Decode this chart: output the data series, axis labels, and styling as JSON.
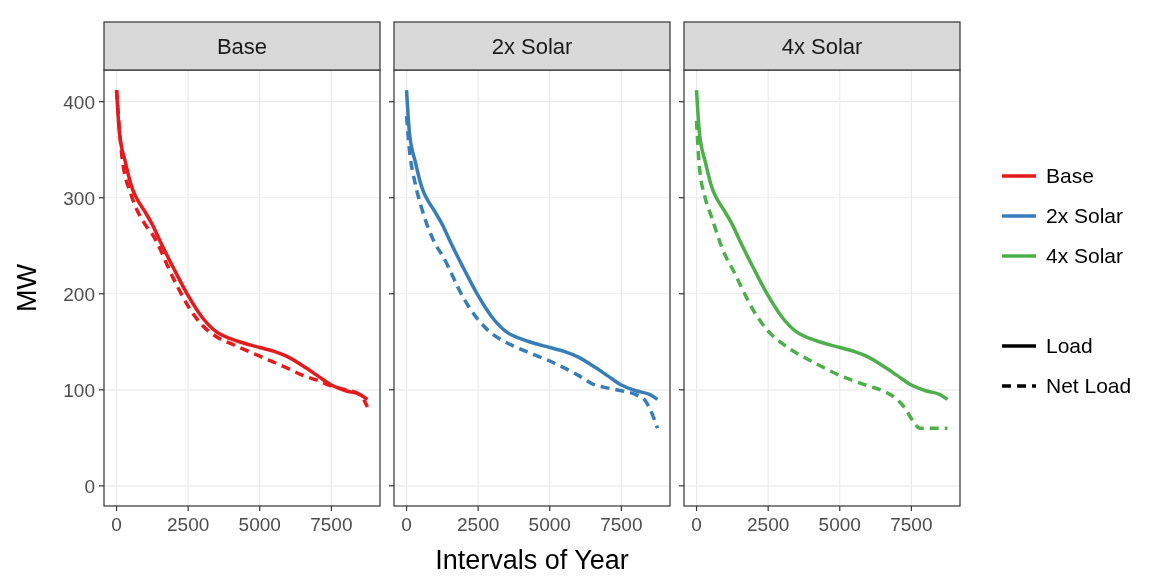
{
  "chart_data": [
    {
      "type": "line",
      "title": "Base",
      "ylabel": "MW",
      "xlim": [
        -438,
        9198
      ],
      "ylim": [
        -21,
        433
      ],
      "xticks": [
        0,
        2500,
        5000,
        7500
      ],
      "yticks": [
        0,
        100,
        200,
        300,
        400
      ],
      "grid": true,
      "legend": false,
      "series": [
        {
          "color": "#e41a1c",
          "line_style": "solid",
          "x": [
            0,
            100,
            300,
            500,
            1000,
            1250,
            1500,
            2000,
            2500,
            3000,
            3500,
            4000,
            5000,
            5500,
            6000,
            6500,
            7000,
            7500,
            8000,
            8500,
            8760
          ],
          "values": [
            412,
            368,
            338,
            314,
            285,
            272,
            256,
            226,
            198,
            175,
            160,
            153,
            144,
            140,
            134,
            125,
            115,
            105,
            99,
            95,
            90
          ]
        },
        {
          "color": "#e41a1c",
          "line_style": "dashed",
          "x": [
            0,
            200,
            500,
            1000,
            1250,
            2000,
            2500,
            3000,
            3500,
            4000,
            5000,
            6000,
            6500,
            7000,
            7500,
            8000,
            8500,
            8760
          ],
          "values": [
            412,
            340,
            304,
            272,
            262,
            215,
            187,
            167,
            155,
            148,
            135,
            122,
            115,
            110,
            104,
            100,
            95,
            82
          ]
        }
      ]
    },
    {
      "type": "line",
      "title": "2x Solar",
      "xlabel": "Intervals of Year",
      "xlim": [
        -438,
        9198
      ],
      "ylim": [
        -21,
        433
      ],
      "xticks": [
        0,
        2500,
        5000,
        7500
      ],
      "yticks": [
        0,
        100,
        200,
        300,
        400
      ],
      "grid": true,
      "legend": false,
      "tick_labels": "x",
      "series": [
        {
          "color": "#377eb8",
          "line_style": "solid",
          "x": [
            0,
            100,
            300,
            500,
            1000,
            1250,
            1500,
            2000,
            2500,
            3000,
            3500,
            4000,
            5000,
            5500,
            6000,
            6500,
            7000,
            7500,
            8000,
            8500,
            8760
          ],
          "values": [
            412,
            368,
            338,
            314,
            285,
            272,
            256,
            226,
            198,
            175,
            160,
            153,
            144,
            140,
            134,
            125,
            115,
            105,
            99,
            95,
            90
          ]
        },
        {
          "color": "#377eb8",
          "line_style": "dashed",
          "x": [
            0,
            100,
            300,
            500,
            1000,
            1250,
            2000,
            2500,
            3000,
            3500,
            4000,
            5000,
            6000,
            6500,
            7000,
            7500,
            8000,
            8300,
            8500,
            8760
          ],
          "values": [
            385,
            350,
            315,
            292,
            252,
            240,
            195,
            173,
            158,
            149,
            142,
            130,
            115,
            106,
            102,
            99,
            95,
            90,
            80,
            60
          ]
        }
      ]
    },
    {
      "type": "line",
      "title": "4x Solar",
      "xlim": [
        -438,
        9198
      ],
      "ylim": [
        -21,
        433
      ],
      "xticks": [
        0,
        2500,
        5000,
        7500
      ],
      "yticks": [
        0,
        100,
        200,
        300,
        400
      ],
      "grid": true,
      "legend": "right",
      "tick_labels": "x",
      "series": [
        {
          "name": "Load",
          "color": "#4daf4a",
          "line_style": "solid",
          "x": [
            0,
            100,
            300,
            500,
            1000,
            1250,
            1500,
            2000,
            2500,
            3000,
            3500,
            4000,
            5000,
            5500,
            6000,
            6500,
            7000,
            7500,
            8000,
            8500,
            8760
          ],
          "values": [
            412,
            368,
            338,
            314,
            285,
            272,
            256,
            226,
            198,
            175,
            160,
            153,
            144,
            140,
            134,
            125,
            115,
            105,
            99,
            95,
            90
          ]
        },
        {
          "name": "Net Load",
          "color": "#4daf4a",
          "line_style": "dashed",
          "x": [
            0,
            100,
            300,
            500,
            1000,
            1250,
            2000,
            2500,
            3000,
            3500,
            4000,
            5000,
            6000,
            6500,
            7000,
            7300,
            7500,
            7800,
            8760
          ],
          "values": [
            380,
            332,
            300,
            282,
            240,
            226,
            182,
            161,
            148,
            138,
            130,
            115,
            104,
            99,
            90,
            80,
            70,
            60,
            60
          ]
        }
      ]
    }
  ]
}
